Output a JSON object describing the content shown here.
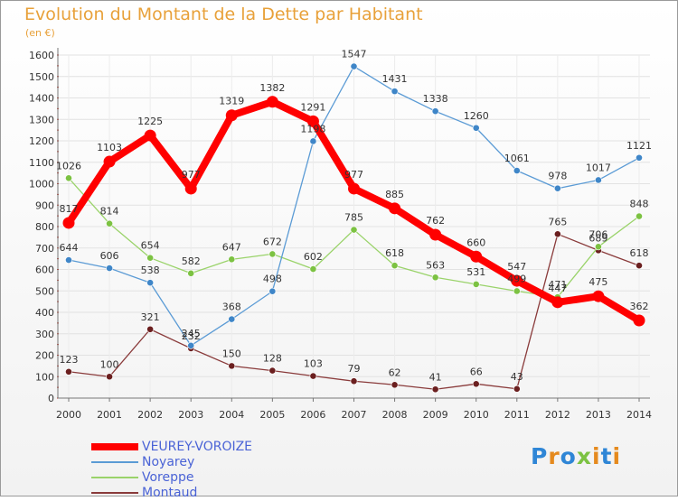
{
  "title": "Evolution du Montant de la Dette par Habitant",
  "unit": "(en €)",
  "brand": {
    "letters": [
      {
        "char": "P",
        "color": "#2f86d6"
      },
      {
        "char": "r",
        "color": "#e58a1e"
      },
      {
        "char": "o",
        "color": "#2f86d6"
      },
      {
        "char": "x",
        "color": "#7cc242"
      },
      {
        "char": "i",
        "color": "#e58a1e"
      },
      {
        "char": "t",
        "color": "#2f86d6"
      },
      {
        "char": "i",
        "color": "#e58a1e"
      }
    ]
  },
  "chart_data": {
    "type": "line",
    "x": [
      "2000",
      "2001",
      "2002",
      "2003",
      "2004",
      "2005",
      "2006",
      "2007",
      "2008",
      "2009",
      "2010",
      "2011",
      "2012",
      "2013",
      "2014"
    ],
    "ylim": [
      0,
      1600
    ],
    "yticks": [
      0,
      100,
      200,
      300,
      400,
      500,
      600,
      700,
      800,
      900,
      1000,
      1100,
      1200,
      1300,
      1400,
      1500,
      1600
    ],
    "grid": true,
    "legend_position": "bottom-left",
    "series": [
      {
        "name": "VEUREY-VOROIZE",
        "color": "#ff0000",
        "marker": "#ff0000",
        "values": [
          817,
          1103,
          1225,
          977,
          1319,
          1382,
          1291,
          977,
          885,
          762,
          660,
          547,
          447,
          475,
          362
        ]
      },
      {
        "name": "Noyarey",
        "color": "#5b9bd5",
        "marker": "#3f86c8",
        "values": [
          644,
          606,
          538,
          245,
          368,
          498,
          1198,
          1547,
          1431,
          1338,
          1260,
          1061,
          978,
          1017,
          1121
        ]
      },
      {
        "name": "Voreppe",
        "color": "#9ad36a",
        "marker": "#7cc242",
        "values": [
          1026,
          814,
          654,
          582,
          647,
          672,
          602,
          785,
          618,
          563,
          531,
          499,
          471,
          706,
          848
        ]
      },
      {
        "name": "Montaud",
        "color": "#8a3b3b",
        "marker": "#6b1f1f",
        "values": [
          123,
          100,
          321,
          232,
          150,
          128,
          103,
          79,
          62,
          41,
          66,
          43,
          765,
          689,
          618
        ]
      }
    ],
    "draw_order": [
      3,
      2,
      1,
      0
    ]
  }
}
